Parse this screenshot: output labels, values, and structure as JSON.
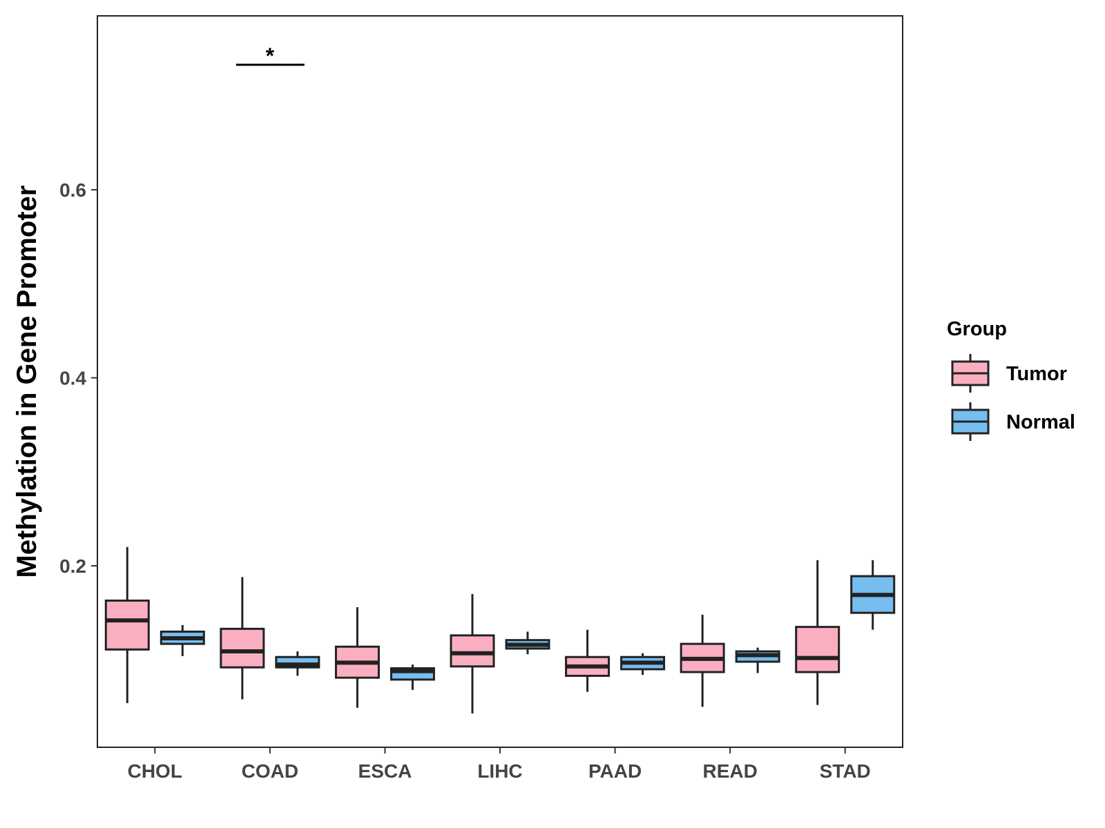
{
  "chart_data": {
    "type": "boxplot",
    "title": "",
    "xlabel": "",
    "ylabel": "Methylation in Gene Promoter",
    "ylim": [
      0.007,
      0.785
    ],
    "yticks": [
      0.2,
      0.4,
      0.6
    ],
    "yticklabels": [
      "0.2",
      "0.4",
      "0.6"
    ],
    "categories": [
      "CHOL",
      "COAD",
      "ESCA",
      "LIHC",
      "PAAD",
      "READ",
      "STAD"
    ],
    "legend": {
      "title": "Group",
      "position": "right",
      "entries": [
        "Tumor",
        "Normal"
      ]
    },
    "colors": {
      "Tumor": "#FAAFC0",
      "Normal": "#76BDF0",
      "outline": "#222222"
    },
    "series": [
      {
        "name": "Tumor",
        "boxes": [
          {
            "category": "CHOL",
            "min": 0.054,
            "q1": 0.111,
            "median": 0.142,
            "q3": 0.163,
            "max": 0.22
          },
          {
            "category": "COAD",
            "min": 0.058,
            "q1": 0.092,
            "median": 0.109,
            "q3": 0.133,
            "max": 0.188
          },
          {
            "category": "ESCA",
            "min": 0.049,
            "q1": 0.081,
            "median": 0.097,
            "q3": 0.114,
            "max": 0.156
          },
          {
            "category": "LIHC",
            "min": 0.043,
            "q1": 0.093,
            "median": 0.107,
            "q3": 0.126,
            "max": 0.17
          },
          {
            "category": "PAAD",
            "min": 0.066,
            "q1": 0.083,
            "median": 0.093,
            "q3": 0.103,
            "max": 0.132
          },
          {
            "category": "READ",
            "min": 0.05,
            "q1": 0.087,
            "median": 0.101,
            "q3": 0.117,
            "max": 0.148
          },
          {
            "category": "STAD",
            "min": 0.052,
            "q1": 0.087,
            "median": 0.102,
            "q3": 0.135,
            "max": 0.206
          }
        ]
      },
      {
        "name": "Normal",
        "boxes": [
          {
            "category": "CHOL",
            "min": 0.104,
            "q1": 0.117,
            "median": 0.123,
            "q3": 0.13,
            "max": 0.137
          },
          {
            "category": "COAD",
            "min": 0.083,
            "q1": 0.092,
            "median": 0.095,
            "q3": 0.103,
            "max": 0.109
          },
          {
            "category": "ESCA",
            "min": 0.068,
            "q1": 0.079,
            "median": 0.088,
            "q3": 0.091,
            "max": 0.095
          },
          {
            "category": "LIHC",
            "min": 0.106,
            "q1": 0.112,
            "median": 0.116,
            "q3": 0.121,
            "max": 0.13
          },
          {
            "category": "PAAD",
            "min": 0.084,
            "q1": 0.09,
            "median": 0.097,
            "q3": 0.103,
            "max": 0.107
          },
          {
            "category": "READ",
            "min": 0.086,
            "q1": 0.098,
            "median": 0.105,
            "q3": 0.109,
            "max": 0.113
          },
          {
            "category": "STAD",
            "min": 0.132,
            "q1": 0.15,
            "median": 0.169,
            "q3": 0.189,
            "max": 0.206
          }
        ]
      }
    ],
    "annotations": [
      {
        "category": "COAD",
        "text": "*",
        "y": 0.733
      }
    ]
  }
}
